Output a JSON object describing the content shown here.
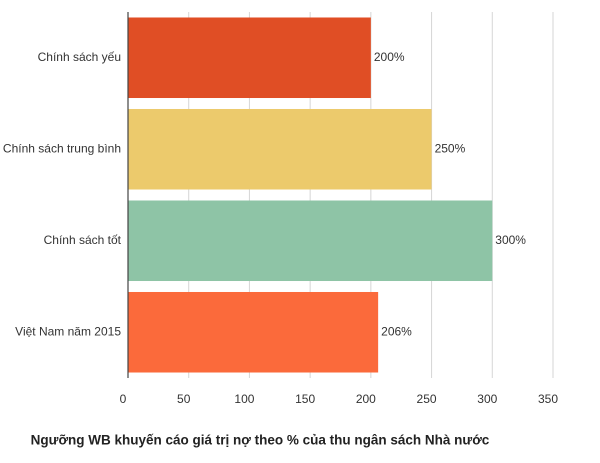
{
  "chart_data": {
    "type": "hbar",
    "title": "Ngưỡng WB khuyến cáo giá trị nợ theo % của thu ngân sách Nhà nước",
    "categories": [
      "Chính sách yếu",
      "Chính sách trung bình",
      "Chính sách tốt",
      "Việt Nam năm 2015"
    ],
    "values": [
      200,
      250,
      300,
      206
    ],
    "value_labels": [
      "200%",
      "250%",
      "300%",
      "206%"
    ],
    "colors": [
      "#e04e25",
      "#ecca6c",
      "#8ec4a6",
      "#fb6a3b"
    ],
    "xlim": [
      0,
      350
    ],
    "xticks": [
      0,
      50,
      100,
      150,
      200,
      250,
      300,
      350
    ],
    "grid": true
  }
}
